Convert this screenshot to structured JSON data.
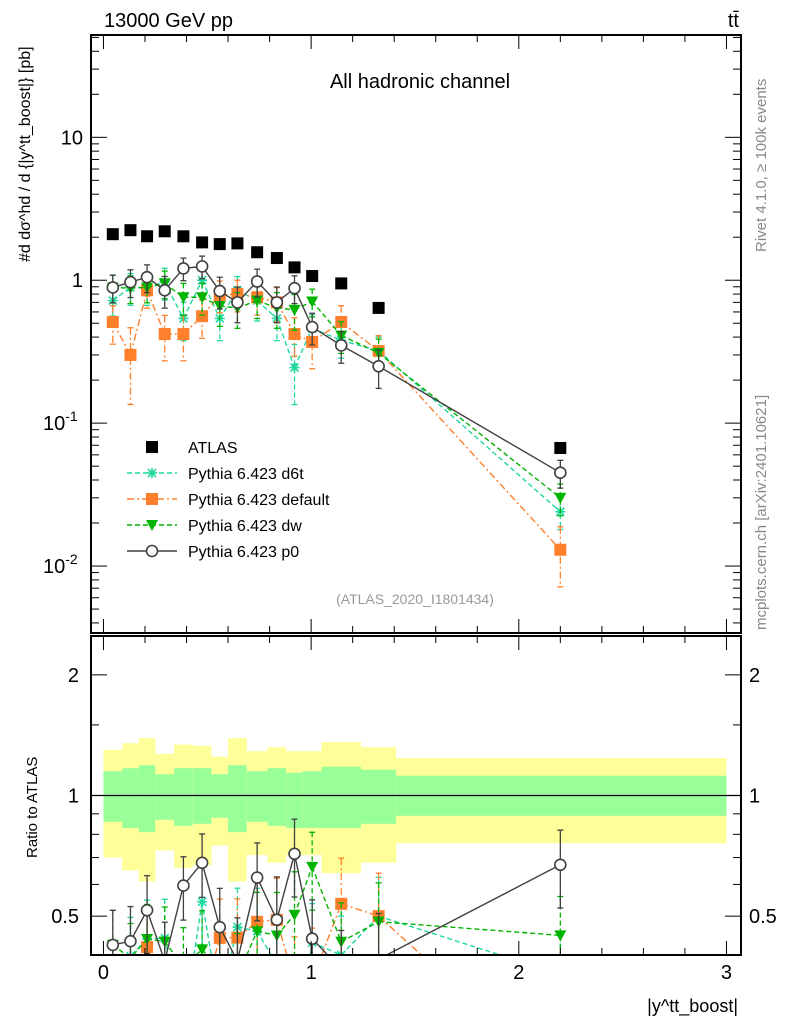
{
  "header": {
    "left": "13000 GeV pp",
    "right": "tt̄"
  },
  "side_labels": {
    "rivet": "Rivet 4.1.0, ≥ 100k events",
    "mcplots": "mcplots.cern.ch [arXiv:2401.10621]"
  },
  "analysis_id": "(ATLAS_2020_I1801434)",
  "colors": {
    "atlas": "#000000",
    "d6t": "#20d8a0",
    "default": "#ff7f2a",
    "dw": "#00b400",
    "p0": "#404040",
    "band_outer": "#ffff99",
    "band_inner": "#99ff99"
  },
  "chart_data": [
    {
      "type": "scatter",
      "title": "All hadronic channel",
      "ylabel": "#d dσ^hd / d {|y^tt_boost|} [pb]",
      "xlabel": "|y^tt_boost|",
      "yscale": "log",
      "xlim": [
        -0.06,
        3.07
      ],
      "ylim": [
        0.0034,
        52
      ],
      "ytick_labels": [
        "10",
        "1",
        "10^-1",
        "10^-2"
      ],
      "ytick_values": [
        10,
        1,
        0.1,
        0.01
      ],
      "legend_position": "lower-left",
      "bin_edges": [
        0,
        0.09,
        0.17,
        0.25,
        0.34,
        0.43,
        0.52,
        0.6,
        0.69,
        0.79,
        0.88,
        0.96,
        1.05,
        1.24,
        1.41,
        3.0
      ],
      "x": [
        0.045,
        0.13,
        0.21,
        0.295,
        0.385,
        0.475,
        0.56,
        0.645,
        0.74,
        0.835,
        0.92,
        1.005,
        1.145,
        1.325,
        2.2
      ],
      "series": [
        {
          "key": "atlas",
          "name": "ATLAS",
          "marker": "square",
          "line": "none",
          "values": [
            2.1,
            2.24,
            2.03,
            2.2,
            2.03,
            1.84,
            1.79,
            1.81,
            1.57,
            1.43,
            1.23,
            1.07,
            0.95,
            0.64,
            0.067
          ],
          "rel_err": [
            0,
            0,
            0,
            0,
            0,
            0,
            0,
            0,
            0,
            0,
            0,
            0,
            0,
            0,
            0
          ]
        },
        {
          "key": "d6t",
          "name": "Pythia 6.423 d6t",
          "marker": "star",
          "line": "dashed",
          "values": [
            0.72,
            0.89,
            0.89,
            0.97,
            0.54,
            1.0,
            0.54,
            0.85,
            0.72,
            0.54,
            0.245,
            0.46,
            0.38,
            0.32,
            0.024
          ],
          "rel_err": [
            0.22,
            0.25,
            0.25,
            0.25,
            0.3,
            0.22,
            0.3,
            0.25,
            0.28,
            0.3,
            0.45,
            0.25,
            0.25,
            0.25,
            0.25
          ]
        },
        {
          "key": "default",
          "name": "Pythia 6.423 default",
          "marker": "square",
          "line": "dashdot",
          "values": [
            0.51,
            0.3,
            0.85,
            0.42,
            0.42,
            0.56,
            0.79,
            0.8,
            0.76,
            0.7,
            0.42,
            0.37,
            0.51,
            0.32,
            0.013
          ],
          "rel_err": [
            0.3,
            0.55,
            0.25,
            0.35,
            0.35,
            0.3,
            0.25,
            0.25,
            0.25,
            0.27,
            0.3,
            0.35,
            0.3,
            0.28,
            0.45
          ]
        },
        {
          "key": "dw",
          "name": "Pythia 6.423 dw",
          "marker": "triangle-down",
          "line": "dashed",
          "values": [
            0.89,
            0.88,
            0.89,
            0.95,
            0.76,
            0.76,
            0.66,
            0.64,
            0.72,
            0.64,
            0.62,
            0.71,
            0.41,
            0.31,
            0.03
          ],
          "rel_err": [
            0.22,
            0.22,
            0.22,
            0.22,
            0.25,
            0.25,
            0.28,
            0.28,
            0.25,
            0.28,
            0.28,
            0.22,
            0.25,
            0.25,
            0.25
          ]
        },
        {
          "key": "p0",
          "name": "Pythia 6.423 p0",
          "marker": "circle-open",
          "line": "solid",
          "values": [
            0.89,
            0.97,
            1.05,
            0.85,
            1.21,
            1.25,
            0.84,
            0.7,
            0.98,
            0.7,
            0.88,
            0.47,
            0.35,
            0.25,
            0.045
          ],
          "rel_err": [
            0.22,
            0.22,
            0.22,
            0.25,
            0.18,
            0.18,
            0.25,
            0.28,
            0.22,
            0.28,
            0.22,
            0.25,
            0.25,
            0.3,
            0.22
          ]
        }
      ]
    },
    {
      "type": "scatter",
      "ylabel": "Ratio to ATLAS",
      "xlabel": "|y^tt_boost|",
      "yscale": "log",
      "ylim": [
        0.4,
        2.5
      ],
      "ytick_labels": [
        "2",
        "1",
        "0.5"
      ],
      "ytick_values": [
        2,
        1,
        0.5
      ],
      "xtick_labels": [
        "0",
        "1",
        "2",
        "3"
      ],
      "xtick_values": [
        0,
        1,
        2,
        3
      ],
      "band_outer_up": [
        1.3,
        1.35,
        1.39,
        1.27,
        1.34,
        1.33,
        1.25,
        1.39,
        1.29,
        1.32,
        1.29,
        1.29,
        1.36,
        1.32,
        1.24
      ],
      "band_outer_down": [
        0.7,
        0.65,
        0.61,
        0.73,
        0.66,
        0.67,
        0.75,
        0.61,
        0.71,
        0.68,
        0.71,
        0.71,
        0.64,
        0.68,
        0.76
      ],
      "band_inner_up": [
        1.15,
        1.17,
        1.19,
        1.13,
        1.17,
        1.17,
        1.13,
        1.19,
        1.15,
        1.17,
        1.14,
        1.15,
        1.18,
        1.16,
        1.12
      ],
      "band_inner_down": [
        0.86,
        0.83,
        0.81,
        0.87,
        0.84,
        0.85,
        0.88,
        0.81,
        0.86,
        0.84,
        0.83,
        0.83,
        0.83,
        0.85,
        0.89
      ]
    }
  ]
}
